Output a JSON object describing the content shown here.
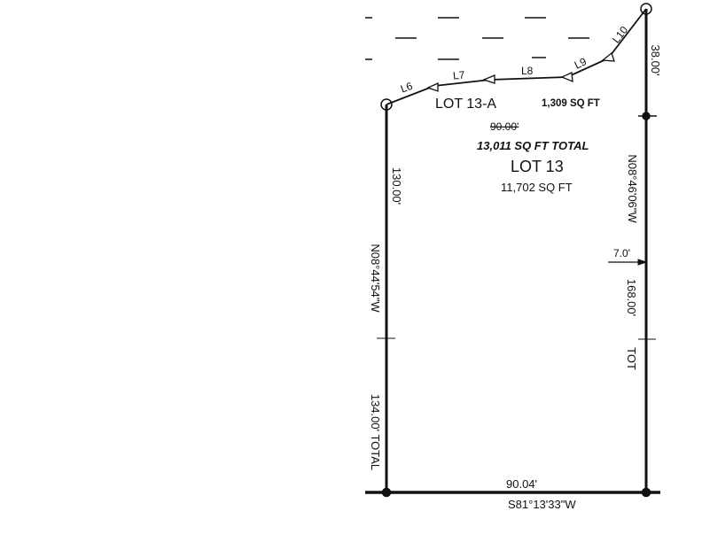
{
  "plat": {
    "lot_13a": {
      "label": "LOT 13-A",
      "area": "1,309 SQ FT"
    },
    "lot_13": {
      "label": "LOT 13",
      "area": "11,702 SQ FT"
    },
    "total_area": "13,011 SQ FT TOTAL",
    "interior_dimension": "90.00'",
    "line_labels": [
      "L6",
      "L7",
      "L8",
      "L9",
      "L10"
    ],
    "left": {
      "segment": "130.00'",
      "bearing": "N08°44'54\"W",
      "total": "134.00' TOTAL"
    },
    "right": {
      "top_segment": "38.00'",
      "bearing": "N08°46'06\"W",
      "segment": "168.00'",
      "total": "TOT",
      "offset": "7.0'"
    },
    "bottom": {
      "distance": "90.04'",
      "bearing": "S81°13'33\"W"
    }
  }
}
